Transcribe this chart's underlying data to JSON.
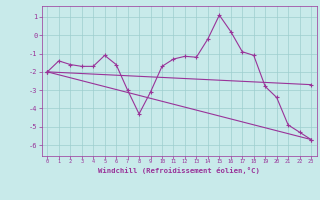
{
  "x": [
    0,
    1,
    2,
    3,
    4,
    5,
    6,
    7,
    8,
    9,
    10,
    11,
    12,
    13,
    14,
    15,
    16,
    17,
    18,
    19,
    20,
    21,
    22,
    23
  ],
  "line1": [
    -2.0,
    -1.4,
    -1.6,
    -1.7,
    -1.7,
    -1.1,
    -1.6,
    -3.0,
    -4.3,
    -3.1,
    -1.7,
    -1.3,
    -1.15,
    -1.2,
    -0.2,
    1.1,
    0.2,
    -0.9,
    -1.1,
    -2.8,
    -3.4,
    -4.9,
    -5.3,
    -5.7
  ],
  "line2_x": [
    0,
    23
  ],
  "line2_y": [
    -2.0,
    -2.7
  ],
  "line3_x": [
    0,
    23
  ],
  "line3_y": [
    -2.0,
    -5.7
  ],
  "color": "#993399",
  "bg_color": "#c8eaea",
  "grid_color": "#9dcece",
  "xlabel": "Windchill (Refroidissement éolien,°C)",
  "xticks": [
    0,
    1,
    2,
    3,
    4,
    5,
    6,
    7,
    8,
    9,
    10,
    11,
    12,
    13,
    14,
    15,
    16,
    17,
    18,
    19,
    20,
    21,
    22,
    23
  ],
  "yticks": [
    -6,
    -5,
    -4,
    -3,
    -2,
    -1,
    0,
    1
  ],
  "ylim": [
    -6.6,
    1.6
  ],
  "xlim": [
    -0.5,
    23.5
  ]
}
